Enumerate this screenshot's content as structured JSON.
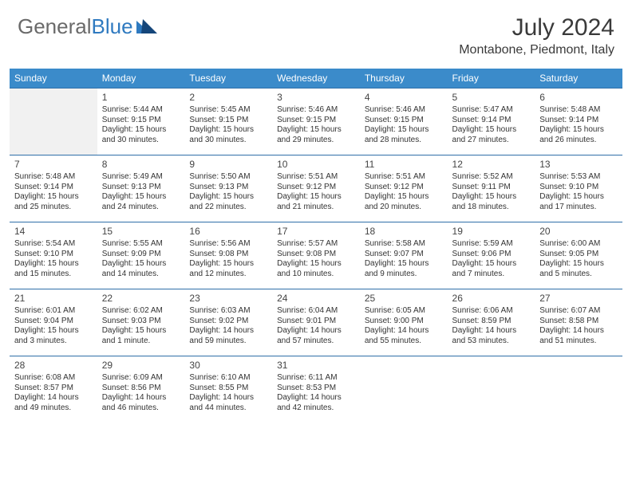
{
  "logo": {
    "word1": "General",
    "word2": "Blue"
  },
  "title": "July 2024",
  "location": "Montabone, Piedmont, Italy",
  "colors": {
    "header_bg": "#3b8bca",
    "header_text": "#ffffff",
    "rule": "#2f6fa8",
    "logo_accent": "#2f7ac0",
    "empty_bg": "#f1f1f1"
  },
  "day_headers": [
    "Sunday",
    "Monday",
    "Tuesday",
    "Wednesday",
    "Thursday",
    "Friday",
    "Saturday"
  ],
  "weeks": [
    [
      {
        "n": "",
        "sr": "",
        "ss": "",
        "dl1": "",
        "dl2": ""
      },
      {
        "n": "1",
        "sr": "Sunrise: 5:44 AM",
        "ss": "Sunset: 9:15 PM",
        "dl1": "Daylight: 15 hours",
        "dl2": "and 30 minutes."
      },
      {
        "n": "2",
        "sr": "Sunrise: 5:45 AM",
        "ss": "Sunset: 9:15 PM",
        "dl1": "Daylight: 15 hours",
        "dl2": "and 30 minutes."
      },
      {
        "n": "3",
        "sr": "Sunrise: 5:46 AM",
        "ss": "Sunset: 9:15 PM",
        "dl1": "Daylight: 15 hours",
        "dl2": "and 29 minutes."
      },
      {
        "n": "4",
        "sr": "Sunrise: 5:46 AM",
        "ss": "Sunset: 9:15 PM",
        "dl1": "Daylight: 15 hours",
        "dl2": "and 28 minutes."
      },
      {
        "n": "5",
        "sr": "Sunrise: 5:47 AM",
        "ss": "Sunset: 9:14 PM",
        "dl1": "Daylight: 15 hours",
        "dl2": "and 27 minutes."
      },
      {
        "n": "6",
        "sr": "Sunrise: 5:48 AM",
        "ss": "Sunset: 9:14 PM",
        "dl1": "Daylight: 15 hours",
        "dl2": "and 26 minutes."
      }
    ],
    [
      {
        "n": "7",
        "sr": "Sunrise: 5:48 AM",
        "ss": "Sunset: 9:14 PM",
        "dl1": "Daylight: 15 hours",
        "dl2": "and 25 minutes."
      },
      {
        "n": "8",
        "sr": "Sunrise: 5:49 AM",
        "ss": "Sunset: 9:13 PM",
        "dl1": "Daylight: 15 hours",
        "dl2": "and 24 minutes."
      },
      {
        "n": "9",
        "sr": "Sunrise: 5:50 AM",
        "ss": "Sunset: 9:13 PM",
        "dl1": "Daylight: 15 hours",
        "dl2": "and 22 minutes."
      },
      {
        "n": "10",
        "sr": "Sunrise: 5:51 AM",
        "ss": "Sunset: 9:12 PM",
        "dl1": "Daylight: 15 hours",
        "dl2": "and 21 minutes."
      },
      {
        "n": "11",
        "sr": "Sunrise: 5:51 AM",
        "ss": "Sunset: 9:12 PM",
        "dl1": "Daylight: 15 hours",
        "dl2": "and 20 minutes."
      },
      {
        "n": "12",
        "sr": "Sunrise: 5:52 AM",
        "ss": "Sunset: 9:11 PM",
        "dl1": "Daylight: 15 hours",
        "dl2": "and 18 minutes."
      },
      {
        "n": "13",
        "sr": "Sunrise: 5:53 AM",
        "ss": "Sunset: 9:10 PM",
        "dl1": "Daylight: 15 hours",
        "dl2": "and 17 minutes."
      }
    ],
    [
      {
        "n": "14",
        "sr": "Sunrise: 5:54 AM",
        "ss": "Sunset: 9:10 PM",
        "dl1": "Daylight: 15 hours",
        "dl2": "and 15 minutes."
      },
      {
        "n": "15",
        "sr": "Sunrise: 5:55 AM",
        "ss": "Sunset: 9:09 PM",
        "dl1": "Daylight: 15 hours",
        "dl2": "and 14 minutes."
      },
      {
        "n": "16",
        "sr": "Sunrise: 5:56 AM",
        "ss": "Sunset: 9:08 PM",
        "dl1": "Daylight: 15 hours",
        "dl2": "and 12 minutes."
      },
      {
        "n": "17",
        "sr": "Sunrise: 5:57 AM",
        "ss": "Sunset: 9:08 PM",
        "dl1": "Daylight: 15 hours",
        "dl2": "and 10 minutes."
      },
      {
        "n": "18",
        "sr": "Sunrise: 5:58 AM",
        "ss": "Sunset: 9:07 PM",
        "dl1": "Daylight: 15 hours",
        "dl2": "and 9 minutes."
      },
      {
        "n": "19",
        "sr": "Sunrise: 5:59 AM",
        "ss": "Sunset: 9:06 PM",
        "dl1": "Daylight: 15 hours",
        "dl2": "and 7 minutes."
      },
      {
        "n": "20",
        "sr": "Sunrise: 6:00 AM",
        "ss": "Sunset: 9:05 PM",
        "dl1": "Daylight: 15 hours",
        "dl2": "and 5 minutes."
      }
    ],
    [
      {
        "n": "21",
        "sr": "Sunrise: 6:01 AM",
        "ss": "Sunset: 9:04 PM",
        "dl1": "Daylight: 15 hours",
        "dl2": "and 3 minutes."
      },
      {
        "n": "22",
        "sr": "Sunrise: 6:02 AM",
        "ss": "Sunset: 9:03 PM",
        "dl1": "Daylight: 15 hours",
        "dl2": "and 1 minute."
      },
      {
        "n": "23",
        "sr": "Sunrise: 6:03 AM",
        "ss": "Sunset: 9:02 PM",
        "dl1": "Daylight: 14 hours",
        "dl2": "and 59 minutes."
      },
      {
        "n": "24",
        "sr": "Sunrise: 6:04 AM",
        "ss": "Sunset: 9:01 PM",
        "dl1": "Daylight: 14 hours",
        "dl2": "and 57 minutes."
      },
      {
        "n": "25",
        "sr": "Sunrise: 6:05 AM",
        "ss": "Sunset: 9:00 PM",
        "dl1": "Daylight: 14 hours",
        "dl2": "and 55 minutes."
      },
      {
        "n": "26",
        "sr": "Sunrise: 6:06 AM",
        "ss": "Sunset: 8:59 PM",
        "dl1": "Daylight: 14 hours",
        "dl2": "and 53 minutes."
      },
      {
        "n": "27",
        "sr": "Sunrise: 6:07 AM",
        "ss": "Sunset: 8:58 PM",
        "dl1": "Daylight: 14 hours",
        "dl2": "and 51 minutes."
      }
    ],
    [
      {
        "n": "28",
        "sr": "Sunrise: 6:08 AM",
        "ss": "Sunset: 8:57 PM",
        "dl1": "Daylight: 14 hours",
        "dl2": "and 49 minutes."
      },
      {
        "n": "29",
        "sr": "Sunrise: 6:09 AM",
        "ss": "Sunset: 8:56 PM",
        "dl1": "Daylight: 14 hours",
        "dl2": "and 46 minutes."
      },
      {
        "n": "30",
        "sr": "Sunrise: 6:10 AM",
        "ss": "Sunset: 8:55 PM",
        "dl1": "Daylight: 14 hours",
        "dl2": "and 44 minutes."
      },
      {
        "n": "31",
        "sr": "Sunrise: 6:11 AM",
        "ss": "Sunset: 8:53 PM",
        "dl1": "Daylight: 14 hours",
        "dl2": "and 42 minutes."
      },
      {
        "n": "",
        "sr": "",
        "ss": "",
        "dl1": "",
        "dl2": ""
      },
      {
        "n": "",
        "sr": "",
        "ss": "",
        "dl1": "",
        "dl2": ""
      },
      {
        "n": "",
        "sr": "",
        "ss": "",
        "dl1": "",
        "dl2": ""
      }
    ]
  ]
}
